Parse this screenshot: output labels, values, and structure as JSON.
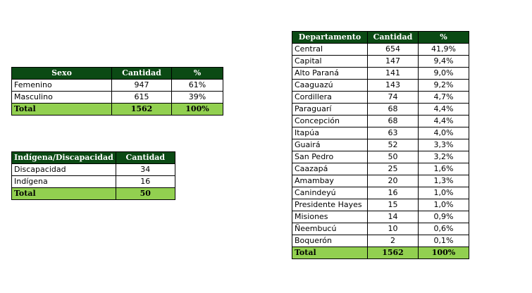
{
  "sexo": {
    "headers": [
      "Sexo",
      "Cantidad",
      "%"
    ],
    "rows": [
      {
        "label": "Femenino",
        "cantidad": "947",
        "pct": "61%"
      },
      {
        "label": "Masculino",
        "cantidad": "615",
        "pct": "39%"
      }
    ],
    "total": {
      "label": "Total",
      "cantidad": "1562",
      "pct": "100%"
    }
  },
  "indigena": {
    "headers": [
      "Indígena/Discapacidad",
      "Cantidad"
    ],
    "rows": [
      {
        "label": "Discapacidad",
        "cantidad": "34"
      },
      {
        "label": "Indígena",
        "cantidad": "16"
      }
    ],
    "total": {
      "label": "Total",
      "cantidad": "50"
    }
  },
  "departamento": {
    "headers": [
      "Departamento",
      "Cantidad",
      "%"
    ],
    "rows": [
      {
        "label": "Central",
        "cantidad": "654",
        "pct": "41,9%"
      },
      {
        "label": "Capital",
        "cantidad": "147",
        "pct": "9,4%"
      },
      {
        "label": "Alto Paraná",
        "cantidad": "141",
        "pct": "9,0%"
      },
      {
        "label": "Caaguazú",
        "cantidad": "143",
        "pct": "9,2%"
      },
      {
        "label": "Cordillera",
        "cantidad": "74",
        "pct": "4,7%"
      },
      {
        "label": "Paraguarí",
        "cantidad": "68",
        "pct": "4,4%"
      },
      {
        "label": "Concepción",
        "cantidad": "68",
        "pct": "4,4%"
      },
      {
        "label": "Itapúa",
        "cantidad": "63",
        "pct": "4,0%"
      },
      {
        "label": "Guairá",
        "cantidad": "52",
        "pct": "3,3%"
      },
      {
        "label": "San Pedro",
        "cantidad": "50",
        "pct": "3,2%"
      },
      {
        "label": "Caazapá",
        "cantidad": "25",
        "pct": "1,6%"
      },
      {
        "label": "Amambay",
        "cantidad": "20",
        "pct": "1,3%"
      },
      {
        "label": "Canindeyú",
        "cantidad": "16",
        "pct": "1,0%"
      },
      {
        "label": "Presidente Hayes",
        "cantidad": "15",
        "pct": "1,0%"
      },
      {
        "label": "Misiones",
        "cantidad": "14",
        "pct": "0,9%"
      },
      {
        "label": "Ñeembucú",
        "cantidad": "10",
        "pct": "0,6%"
      },
      {
        "label": "Boquerón",
        "cantidad": "2",
        "pct": "0,1%"
      }
    ],
    "total": {
      "label": "Total",
      "cantidad": "1562",
      "pct": "100%"
    }
  },
  "colors": {
    "header_bg": "#0b4a14",
    "total_bg": "#92d050"
  }
}
